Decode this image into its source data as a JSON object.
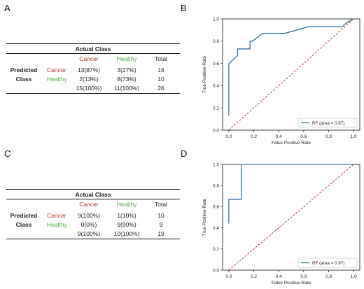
{
  "panels": {
    "A": "A",
    "B": "B",
    "C": "C",
    "D": "D"
  },
  "tableA": {
    "header": "Actual Class",
    "col_labels": [
      "Cancer",
      "Healthy",
      "Total"
    ],
    "pred_line1": "Predicted",
    "pred_line2": "Class",
    "row_labels": [
      "Cancer",
      "Healthy"
    ],
    "rows": [
      [
        "13(87%)",
        "3(27%)",
        "16"
      ],
      [
        "2(13%)",
        "8(73%)",
        "10"
      ],
      [
        "15(100%)",
        "11(100%)",
        "26"
      ]
    ]
  },
  "tableC": {
    "header": "Actual Class",
    "col_labels": [
      "Cancer",
      "Healthy",
      "Total"
    ],
    "pred_line1": "Predicted",
    "pred_line2": "Class",
    "row_labels": [
      "Cancer",
      "Healthy"
    ],
    "rows": [
      [
        "9(100%)",
        "1(10%)",
        "10"
      ],
      [
        "0(0%)",
        "9(90%)",
        "9"
      ],
      [
        "9(100%)",
        "10(100%)",
        "19"
      ]
    ]
  },
  "colors": {
    "roc": "#2f6fa8",
    "diagonal": "#c0392b",
    "cancer": "#b5322c",
    "healthy": "#4ca640"
  },
  "chart_data": [
    {
      "type": "line",
      "panel": "B",
      "xlabel": "False Positive Rate",
      "ylabel": "True Positive Rate",
      "xlim": [
        -0.05,
        1.05
      ],
      "ylim": [
        0.0,
        1.0
      ],
      "xticks": [
        "0.0",
        "0.2",
        "0.4",
        "0.6",
        "0.8",
        "1.0"
      ],
      "yticks": [
        "0.0",
        "0.2",
        "0.4",
        "0.6",
        "0.8",
        "1.0"
      ],
      "legend": "lower right",
      "series": [
        {
          "name": "RF (area = 0.87)",
          "x": [
            0.0,
            0.0,
            0.0,
            0.07,
            0.07,
            0.1,
            0.17,
            0.17,
            0.19,
            0.27,
            0.45,
            0.64,
            0.91,
            0.95,
            1.0
          ],
          "y": [
            0.13,
            0.6,
            0.6,
            0.67,
            0.73,
            0.73,
            0.73,
            0.8,
            0.8,
            0.87,
            0.87,
            0.93,
            0.93,
            0.97,
            1.0
          ]
        }
      ],
      "diagonal": {
        "x": [
          0.0,
          1.0
        ],
        "y": [
          0.0,
          1.0
        ]
      }
    },
    {
      "type": "line",
      "panel": "D",
      "xlabel": "False Positive Rate",
      "ylabel": "True Positive Rate",
      "xlim": [
        -0.05,
        1.05
      ],
      "ylim": [
        0.0,
        1.0
      ],
      "xticks": [
        "0.0",
        "0.2",
        "0.4",
        "0.6",
        "0.8",
        "1.0"
      ],
      "yticks": [
        "0.0",
        "0.2",
        "0.4",
        "0.6",
        "0.8",
        "1.0"
      ],
      "legend": "lower right",
      "series": [
        {
          "name": "RF (area = 0.97)",
          "x": [
            0.0,
            0.0,
            0.1,
            0.1,
            1.0
          ],
          "y": [
            0.44,
            0.67,
            0.67,
            1.0,
            1.0
          ]
        }
      ],
      "diagonal": {
        "x": [
          0.0,
          1.0
        ],
        "y": [
          0.0,
          1.0
        ]
      }
    }
  ]
}
